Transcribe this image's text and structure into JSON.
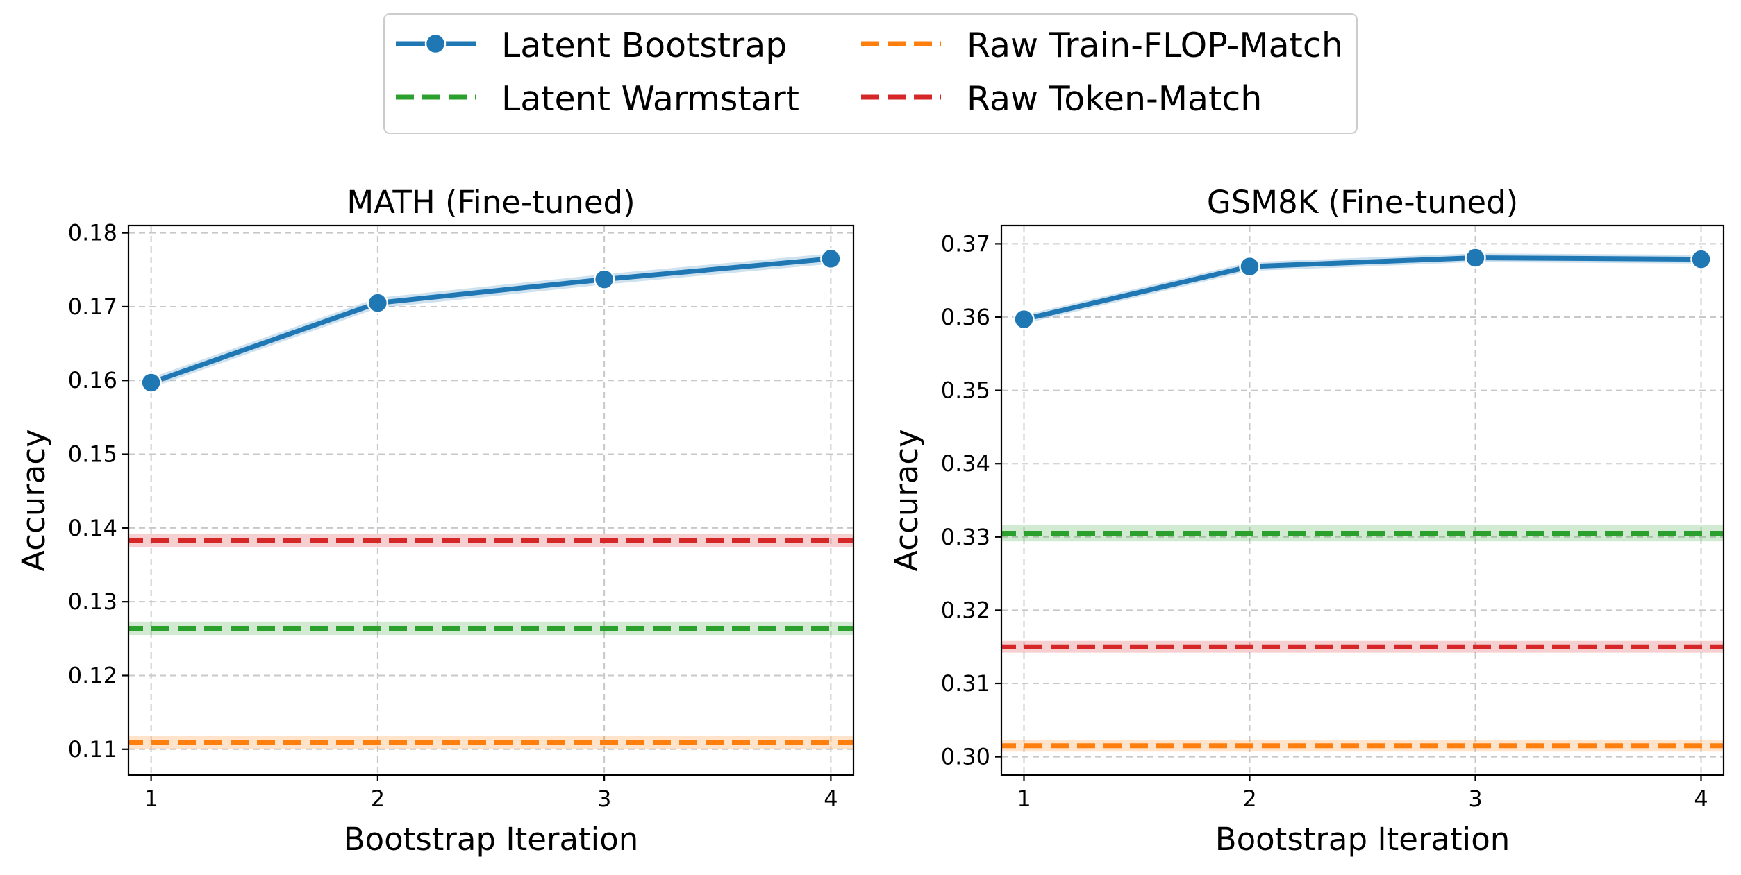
{
  "legend": {
    "items": [
      {
        "key": "latent_bootstrap",
        "label": "Latent Bootstrap",
        "color": "#1f77b4",
        "style": "solid-marker"
      },
      {
        "key": "latent_warmstart",
        "label": "Latent Warmstart",
        "color": "#2ca02c",
        "style": "dashed"
      },
      {
        "key": "raw_train_flop_match",
        "label": "Raw Train-FLOP-Match",
        "color": "#ff7f0e",
        "style": "dashed"
      },
      {
        "key": "raw_token_match",
        "label": "Raw Token-Match",
        "color": "#d62728",
        "style": "dashed"
      }
    ],
    "placement": "top-center",
    "columns": 2
  },
  "chart_data": [
    {
      "type": "line",
      "title": "MATH (Fine-tuned)",
      "xlabel": "Bootstrap Iteration",
      "ylabel": "Accuracy",
      "x": [
        1,
        2,
        3,
        4
      ],
      "x_ticks": [
        "1",
        "2",
        "3",
        "4"
      ],
      "xlim": [
        0.9,
        4.1
      ],
      "ylim": [
        0.1065,
        0.181
      ],
      "y_ticks": [
        "0.11",
        "0.12",
        "0.13",
        "0.14",
        "0.15",
        "0.16",
        "0.17",
        "0.18"
      ],
      "grid": true,
      "series": [
        {
          "key": "latent_bootstrap",
          "values": [
            0.1597,
            0.1705,
            0.1737,
            0.1765
          ],
          "band": 0.0007
        },
        {
          "key": "raw_token_match",
          "constant": 0.1383,
          "band": 0.0009
        },
        {
          "key": "latent_warmstart",
          "constant": 0.1264,
          "band": 0.0009
        },
        {
          "key": "raw_train_flop_match",
          "constant": 0.1109,
          "band": 0.0009
        }
      ]
    },
    {
      "type": "line",
      "title": "GSM8K (Fine-tuned)",
      "xlabel": "Bootstrap Iteration",
      "ylabel": "Accuracy",
      "x": [
        1,
        2,
        3,
        4
      ],
      "x_ticks": [
        "1",
        "2",
        "3",
        "4"
      ],
      "xlim": [
        0.9,
        4.1
      ],
      "ylim": [
        0.2975,
        0.3725
      ],
      "y_ticks": [
        "0.30",
        "0.31",
        "0.32",
        "0.33",
        "0.34",
        "0.35",
        "0.36",
        "0.37"
      ],
      "grid": true,
      "series": [
        {
          "key": "latent_bootstrap",
          "values": [
            0.3597,
            0.3669,
            0.3681,
            0.3679
          ],
          "band": 0.0006
        },
        {
          "key": "latent_warmstart",
          "constant": 0.3305,
          "band": 0.0011
        },
        {
          "key": "raw_token_match",
          "constant": 0.315,
          "band": 0.0008
        },
        {
          "key": "raw_train_flop_match",
          "constant": 0.3015,
          "band": 0.0008
        }
      ]
    }
  ]
}
